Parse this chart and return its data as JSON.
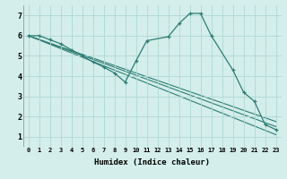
{
  "xlabel": "Humidex (Indice chaleur)",
  "bg_color": "#d4eeeb",
  "line_color": "#2e7d74",
  "grid_color": "#aed8d3",
  "xlim": [
    -0.5,
    23.5
  ],
  "ylim": [
    0.5,
    7.5
  ],
  "xticks": [
    0,
    1,
    2,
    3,
    4,
    5,
    6,
    7,
    8,
    9,
    10,
    11,
    12,
    13,
    14,
    15,
    16,
    17,
    18,
    19,
    20,
    21,
    22,
    23
  ],
  "yticks": [
    1,
    2,
    3,
    4,
    5,
    6,
    7
  ],
  "main_series": {
    "x": [
      0,
      1,
      2,
      3,
      4,
      5,
      6,
      7,
      8,
      9,
      10,
      11,
      13,
      14,
      15,
      16,
      17,
      19,
      20,
      21,
      22,
      23
    ],
    "y": [
      6.0,
      6.0,
      5.8,
      5.6,
      5.3,
      5.0,
      4.7,
      4.45,
      4.15,
      3.7,
      4.75,
      5.75,
      5.95,
      6.6,
      7.1,
      7.1,
      6.0,
      4.3,
      3.2,
      2.75,
      1.6,
      1.35
    ]
  },
  "straight_lines": [
    {
      "x": [
        0,
        23
      ],
      "y": [
        6.0,
        1.1
      ]
    },
    {
      "x": [
        0,
        23
      ],
      "y": [
        6.0,
        1.5
      ]
    },
    {
      "x": [
        0,
        23
      ],
      "y": [
        6.0,
        1.75
      ]
    }
  ]
}
